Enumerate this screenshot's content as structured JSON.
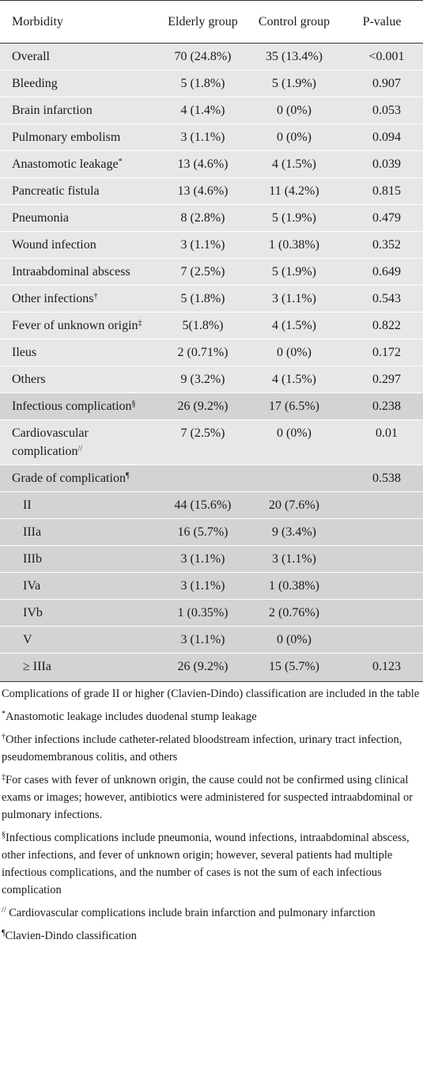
{
  "table": {
    "headers": {
      "morbidity": "Morbidity",
      "elderly": "Elderly group",
      "control": "Control group",
      "pvalue": "P-value"
    },
    "rows": [
      {
        "label": "Overall",
        "mark": "",
        "elderly": "70 (24.8%)",
        "control": "35 (13.4%)",
        "p": "<0.001",
        "shade": "light"
      },
      {
        "label": "Bleeding",
        "mark": "",
        "elderly": "5 (1.8%)",
        "control": "5 (1.9%)",
        "p": "0.907",
        "shade": "light"
      },
      {
        "label": "Brain infarction",
        "mark": "",
        "elderly": "4 (1.4%)",
        "control": "0 (0%)",
        "p": "0.053",
        "shade": "light"
      },
      {
        "label": "Pulmonary embolism",
        "mark": "",
        "elderly": "3 (1.1%)",
        "control": "0 (0%)",
        "p": "0.094",
        "shade": "light"
      },
      {
        "label": "Anastomotic leakage",
        "mark": "*",
        "elderly": "13 (4.6%)",
        "control": "4 (1.5%)",
        "p": "0.039",
        "shade": "light"
      },
      {
        "label": "Pancreatic fistula",
        "mark": "",
        "elderly": "13 (4.6%)",
        "control": "11 (4.2%)",
        "p": "0.815",
        "shade": "light"
      },
      {
        "label": "Pneumonia",
        "mark": "",
        "elderly": "8 (2.8%)",
        "control": "5 (1.9%)",
        "p": "0.479",
        "shade": "light"
      },
      {
        "label": "Wound infection",
        "mark": "",
        "elderly": "3 (1.1%)",
        "control": "1 (0.38%)",
        "p": "0.352",
        "shade": "light"
      },
      {
        "label": "Intraabdominal abscess",
        "mark": "",
        "elderly": "7 (2.5%)",
        "control": "5 (1.9%)",
        "p": "0.649",
        "shade": "light"
      },
      {
        "label": "Other infections",
        "mark": "†",
        "elderly": "5 (1.8%)",
        "control": "3 (1.1%)",
        "p": "0.543",
        "shade": "light"
      },
      {
        "label": "Fever of unknown origin",
        "mark": "‡",
        "elderly": "5(1.8%)",
        "control": "4 (1.5%)",
        "p": "0.822",
        "shade": "light"
      },
      {
        "label": "Ileus",
        "mark": "",
        "elderly": "2 (0.71%)",
        "control": "0 (0%)",
        "p": "0.172",
        "shade": "light"
      },
      {
        "label": "Others",
        "mark": "",
        "elderly": "9 (3.2%)",
        "control": "4 (1.5%)",
        "p": "0.297",
        "shade": "light"
      },
      {
        "label": "Infectious complication",
        "mark": "§",
        "elderly": "26 (9.2%)",
        "control": "17 (6.5%)",
        "p": "0.238",
        "shade": "dark"
      },
      {
        "label": "Cardiovascular complication",
        "mark": "//",
        "elderly": "7 (2.5%)",
        "control": "0 (0%)",
        "p": "0.01",
        "shade": "light"
      },
      {
        "label": "Grade of complication",
        "mark": "¶",
        "elderly": "",
        "control": "",
        "p": "0.538",
        "shade": "dark"
      },
      {
        "label": "II",
        "mark": "",
        "elderly": "44 (15.6%)",
        "control": "20 (7.6%)",
        "p": "",
        "shade": "dark",
        "sub": true
      },
      {
        "label": "IIIa",
        "mark": "",
        "elderly": "16 (5.7%)",
        "control": "9 (3.4%)",
        "p": "",
        "shade": "dark",
        "sub": true
      },
      {
        "label": "IIIb",
        "mark": "",
        "elderly": "3 (1.1%)",
        "control": "3 (1.1%)",
        "p": "",
        "shade": "dark",
        "sub": true
      },
      {
        "label": "IVa",
        "mark": "",
        "elderly": "3 (1.1%)",
        "control": "1 (0.38%)",
        "p": "",
        "shade": "dark",
        "sub": true
      },
      {
        "label": "IVb",
        "mark": "",
        "elderly": "1 (0.35%)",
        "control": "2 (0.76%)",
        "p": "",
        "shade": "dark",
        "sub": true
      },
      {
        "label": "V",
        "mark": "",
        "elderly": "3 (1.1%)",
        "control": "0 (0%)",
        "p": "",
        "shade": "dark",
        "sub": true
      },
      {
        "label": "≥ IIIa",
        "mark": "",
        "elderly": "26 (9.2%)",
        "control": "15 (5.7%)",
        "p": "0.123",
        "shade": "dark",
        "sub": true
      }
    ]
  },
  "footnotes": [
    {
      "mark": "",
      "text": "Complications of grade II or higher (Clavien-Dindo) classification are included in the table"
    },
    {
      "mark": "*",
      "text": "Anastomotic leakage includes duodenal stump leakage"
    },
    {
      "mark": "†",
      "text": "Other infections include catheter-related bloodstream infection, urinary tract infection, pseudomembranous colitis, and others"
    },
    {
      "mark": "‡",
      "text": "For cases with fever of unknown origin, the cause could not be confirmed using clinical exams or images; however, antibiotics were administered for suspected intraabdominal or pulmonary infections."
    },
    {
      "mark": "§",
      "text": "Infectious complications include pneumonia, wound infections, intraabdominal abscess, other infections, and fever of unknown origin; however, several patients had multiple infectious complications, and the number of cases is not the sum of each infectious complication"
    },
    {
      "mark": "//",
      "text": " Cardiovascular complications include brain infarction and pulmonary infarction"
    },
    {
      "mark": "¶",
      "text": "Clavien-Dindo classification"
    }
  ]
}
